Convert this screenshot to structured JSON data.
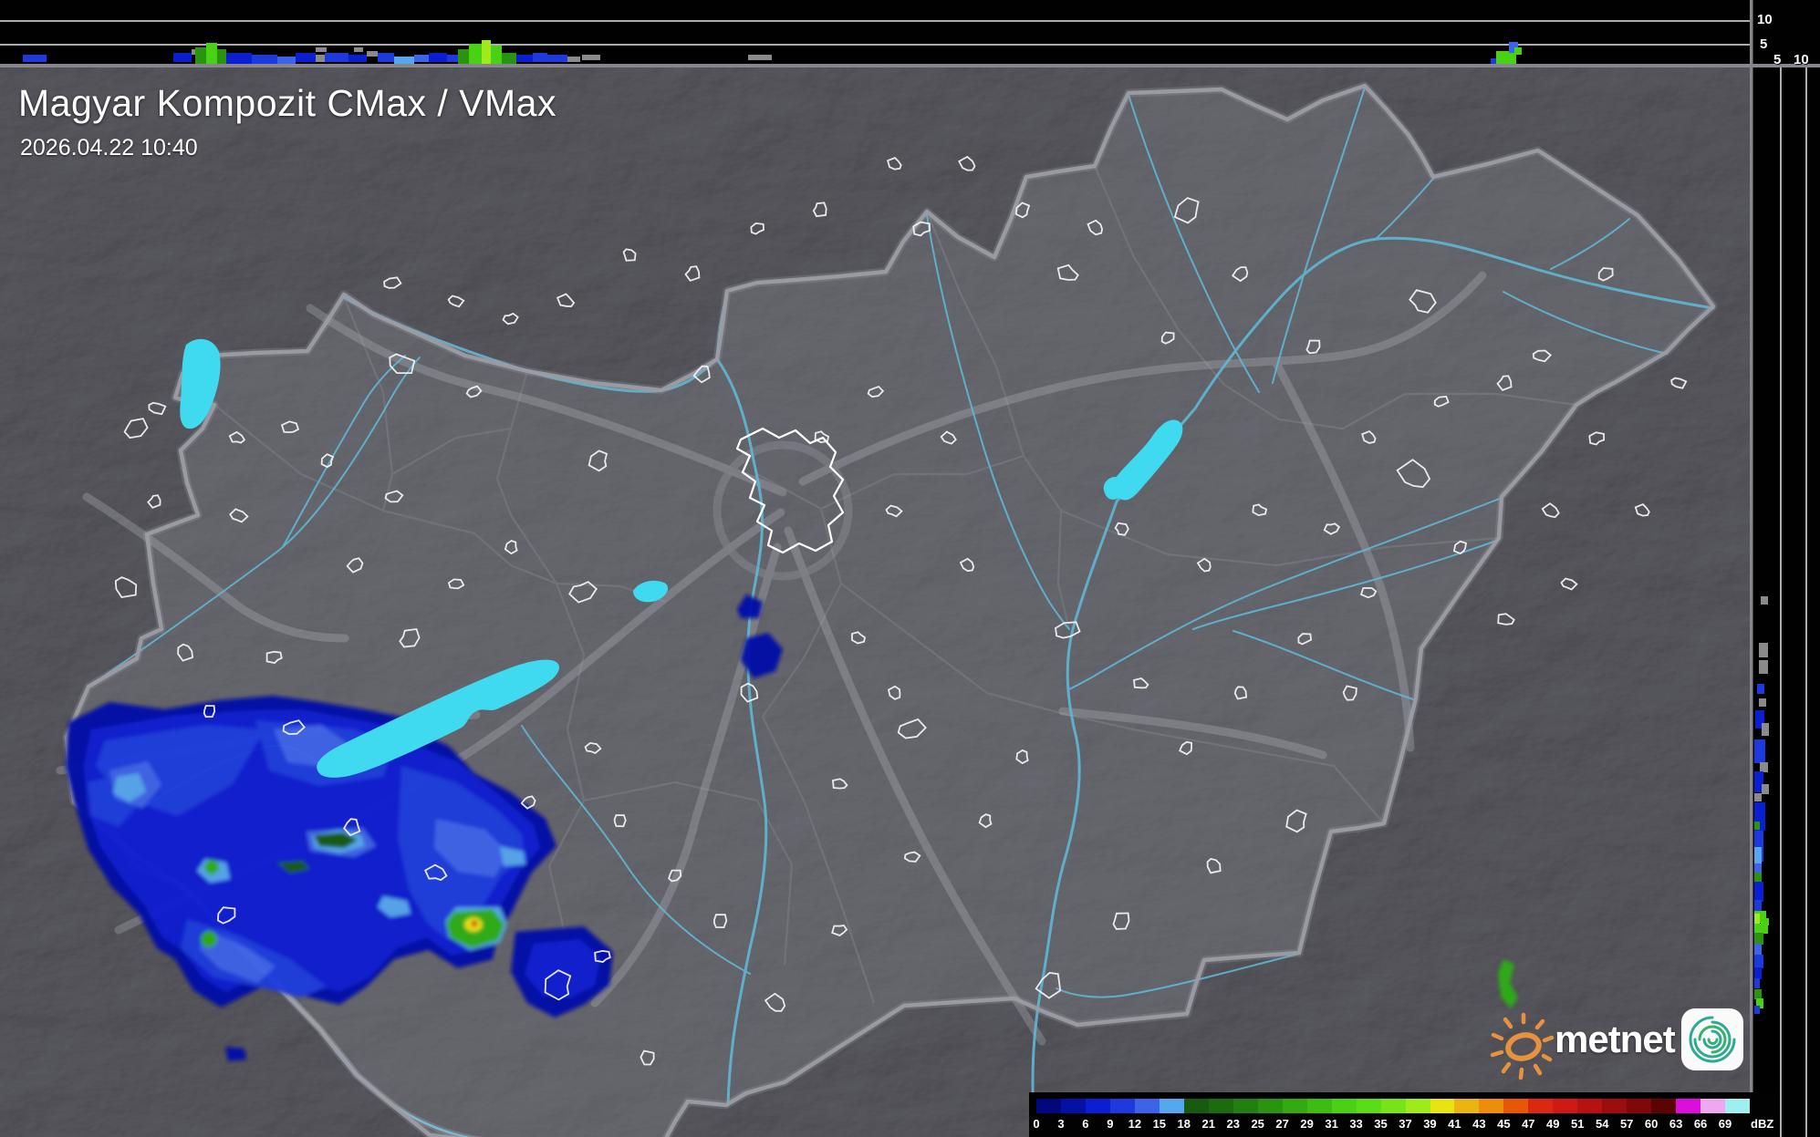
{
  "header": {
    "title": "Magyar Kompozit CMax / VMax",
    "timestamp": "2026.04.22 10:40"
  },
  "legend": {
    "unit": "dBZ",
    "values": [
      "0",
      "3",
      "6",
      "9",
      "12",
      "15",
      "18",
      "21",
      "23",
      "25",
      "27",
      "29",
      "31",
      "33",
      "35",
      "37",
      "39",
      "41",
      "43",
      "45",
      "47",
      "49",
      "51",
      "54",
      "57",
      "60",
      "63",
      "66",
      "69"
    ],
    "colors": [
      "#02077E",
      "#0410A6",
      "#0A1ED2",
      "#1E3ADE",
      "#3C64E8",
      "#55A7EE",
      "#185A10",
      "#1D6B10",
      "#238010",
      "#2A9411",
      "#33A912",
      "#3DBD13",
      "#49D215",
      "#5ADC16",
      "#78E318",
      "#9EEA1A",
      "#E8E414",
      "#EBB410",
      "#EE8C0C",
      "#E85608",
      "#DC2810",
      "#CE1A12",
      "#B81210",
      "#9E0D0D",
      "#800808",
      "#5A0404",
      "#DC0EDC",
      "#EFA8EF",
      "#9FEFEF"
    ]
  },
  "profile_axes": {
    "top_strip_km": [
      "10",
      "5"
    ],
    "right_strip_km": [
      "5",
      "10"
    ]
  },
  "branding": {
    "logo_text": "metnet"
  },
  "colors": {
    "lake": "#3FD9F0",
    "border": "#9c9ca4",
    "river": "#5fb8d6"
  }
}
